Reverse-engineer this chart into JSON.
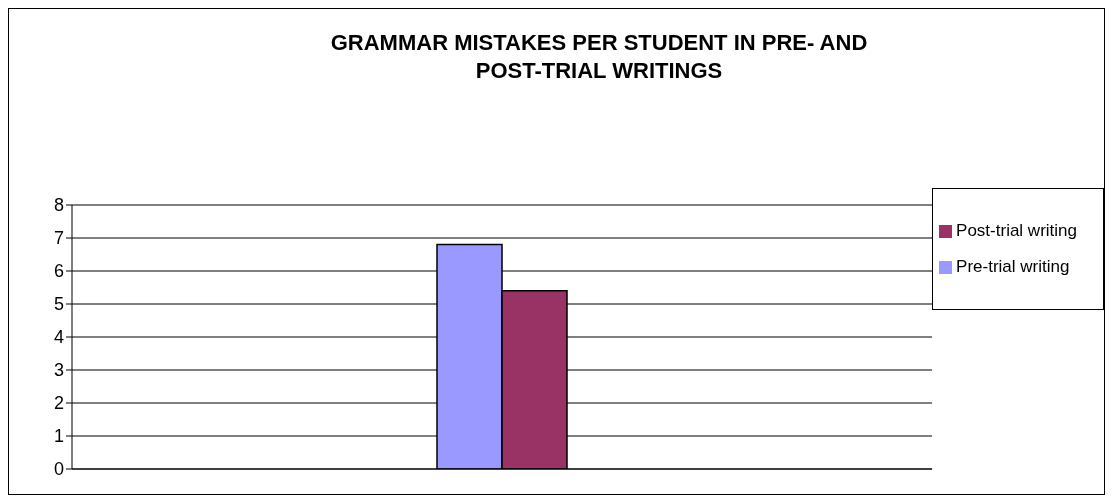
{
  "chart_data": {
    "type": "bar",
    "title": "GRAMMAR MISTAKES PER STUDENT IN PRE- AND POST-TRIAL WRITINGS",
    "categories": [
      null
    ],
    "series": [
      {
        "name": "Pre-trial writing",
        "color": "#9999ff",
        "values": [
          6.8
        ]
      },
      {
        "name": "Post-trial writing",
        "color": "#993366",
        "values": [
          5.4
        ]
      }
    ],
    "ylim": [
      0,
      8
    ],
    "yticks": [
      0,
      1,
      2,
      3,
      4,
      5,
      6,
      7,
      8
    ],
    "grid": "y",
    "legend": "right"
  }
}
